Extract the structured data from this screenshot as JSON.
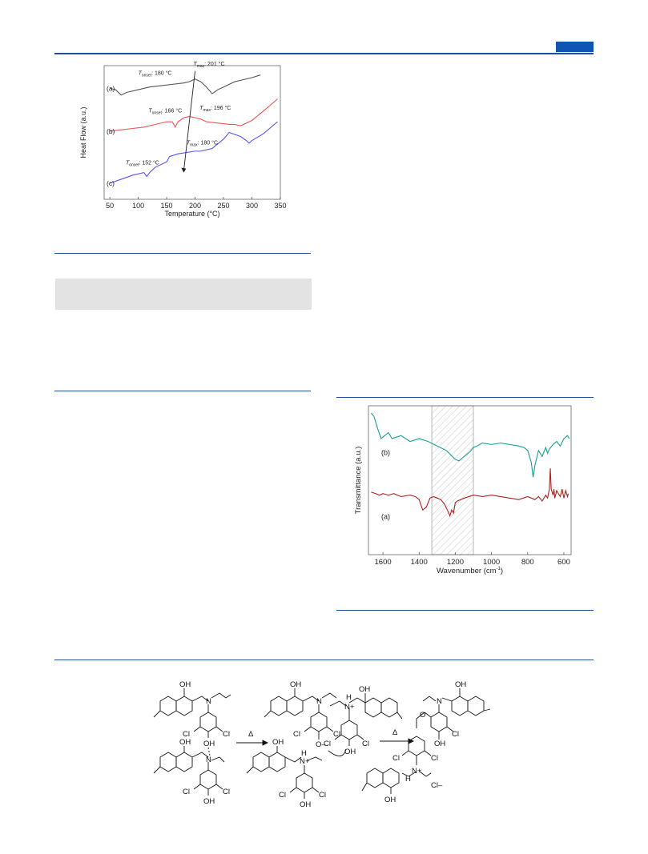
{
  "colors": {
    "accent": "#1155b2",
    "rule": "#1f4e99",
    "curve_a_dsc": "#555555",
    "curve_b_dsc": "#ee5555",
    "curve_c_dsc": "#5555ee",
    "curve_a_ir": "#aa2222",
    "curve_b_ir": "#1a9e94",
    "shade_box": "#f2f2f2"
  },
  "chart_data": [
    {
      "type": "line",
      "xlabel": "Temperature (°C)",
      "ylabel": "Heat Flow (a.u.)",
      "xlim": [
        40,
        350
      ],
      "xticks": [
        "50",
        "100",
        "150",
        "200",
        "250",
        "300",
        "350"
      ],
      "series": [
        {
          "name": "(a)",
          "x": [
            50,
            60,
            70,
            80,
            100,
            120,
            140,
            160,
            180,
            190,
            200,
            210,
            220,
            230,
            240,
            250,
            260,
            270,
            280,
            300,
            315
          ],
          "y": [
            0.83,
            0.82,
            0.78,
            0.8,
            0.82,
            0.84,
            0.85,
            0.86,
            0.87,
            0.88,
            0.9,
            0.88,
            0.84,
            0.79,
            0.82,
            0.84,
            0.86,
            0.88,
            0.89,
            0.91,
            0.93
          ]
        },
        {
          "name": "(b)",
          "x": [
            50,
            70,
            90,
            110,
            130,
            150,
            160,
            165,
            170,
            180,
            190,
            200,
            210,
            220,
            240,
            260,
            270,
            280,
            300,
            320,
            345
          ],
          "y": [
            0.51,
            0.52,
            0.53,
            0.54,
            0.56,
            0.58,
            0.58,
            0.54,
            0.58,
            0.61,
            0.62,
            0.61,
            0.6,
            0.58,
            0.57,
            0.56,
            0.56,
            0.55,
            0.59,
            0.66,
            0.75
          ]
        },
        {
          "name": "(c)",
          "x": [
            50,
            70,
            90,
            110,
            115,
            120,
            130,
            150,
            155,
            170,
            200,
            210,
            230,
            250,
            260,
            280,
            290,
            295,
            300,
            320,
            345
          ],
          "y": [
            0.12,
            0.15,
            0.18,
            0.2,
            0.17,
            0.2,
            0.24,
            0.28,
            0.32,
            0.34,
            0.36,
            0.36,
            0.38,
            0.45,
            0.5,
            0.47,
            0.44,
            0.42,
            0.44,
            0.49,
            0.58
          ]
        }
      ],
      "annotations": [
        {
          "for": "(a)",
          "kind": "onset",
          "label": "onset",
          "value": "180 °C"
        },
        {
          "for": "(a)",
          "kind": "max",
          "label": "max",
          "value": "201 °C"
        },
        {
          "for": "(b)",
          "kind": "onset",
          "label": "onset",
          "value": "166 °C"
        },
        {
          "for": "(b)",
          "kind": "max",
          "label": "max",
          "value": "196 °C"
        },
        {
          "for": "(c)",
          "kind": "onset",
          "label": "onset",
          "value": "152 °C"
        },
        {
          "for": "(c)",
          "kind": "max",
          "label": "max",
          "value": "180 °C"
        }
      ]
    },
    {
      "type": "line",
      "xlabel_main": "Wavenumber (cm",
      "xlabel_sup": "-1",
      "xlabel_tail": ")",
      "ylabel": "Transmittance (a.u.)",
      "xlim": [
        1680,
        560
      ],
      "x_reversed": true,
      "xticks": [
        "1600",
        "1400",
        "1200",
        "1000",
        "800",
        "600"
      ],
      "shaded_region": [
        1330,
        1100
      ],
      "series": [
        {
          "name": "(b)",
          "x": [
            1665,
            1650,
            1630,
            1610,
            1590,
            1570,
            1550,
            1500,
            1450,
            1400,
            1350,
            1300,
            1250,
            1200,
            1180,
            1150,
            1120,
            1100,
            1080,
            1050,
            1000,
            950,
            900,
            850,
            820,
            800,
            780,
            770,
            760,
            740,
            720,
            700,
            690,
            680,
            660,
            640,
            620,
            600,
            580,
            570
          ],
          "y": [
            0.95,
            0.93,
            0.85,
            0.78,
            0.8,
            0.82,
            0.78,
            0.8,
            0.76,
            0.78,
            0.76,
            0.73,
            0.7,
            0.64,
            0.63,
            0.66,
            0.69,
            0.72,
            0.73,
            0.75,
            0.74,
            0.75,
            0.74,
            0.73,
            0.72,
            0.7,
            0.62,
            0.52,
            0.6,
            0.7,
            0.66,
            0.72,
            0.68,
            0.71,
            0.74,
            0.76,
            0.73,
            0.78,
            0.8,
            0.78
          ]
        },
        {
          "name": "(a)",
          "x": [
            1665,
            1640,
            1620,
            1600,
            1570,
            1540,
            1500,
            1450,
            1420,
            1400,
            1380,
            1360,
            1340,
            1320,
            1300,
            1280,
            1260,
            1240,
            1230,
            1220,
            1210,
            1200,
            1190,
            1170,
            1150,
            1100,
            1050,
            1000,
            950,
            900,
            850,
            800,
            780,
            760,
            740,
            720,
            700,
            690,
            685,
            680,
            675,
            670,
            665,
            660,
            655,
            650,
            640,
            620,
            610,
            600,
            590,
            580,
            575
          ],
          "y": [
            0.42,
            0.41,
            0.4,
            0.41,
            0.4,
            0.41,
            0.39,
            0.4,
            0.39,
            0.37,
            0.3,
            0.32,
            0.38,
            0.39,
            0.38,
            0.37,
            0.34,
            0.29,
            0.26,
            0.3,
            0.28,
            0.35,
            0.36,
            0.37,
            0.38,
            0.4,
            0.39,
            0.4,
            0.39,
            0.38,
            0.37,
            0.39,
            0.38,
            0.37,
            0.39,
            0.36,
            0.4,
            0.38,
            0.41,
            0.44,
            0.58,
            0.44,
            0.42,
            0.4,
            0.44,
            0.38,
            0.43,
            0.39,
            0.44,
            0.38,
            0.43,
            0.39,
            0.41
          ]
        }
      ]
    }
  ],
  "scheme": {
    "arrow_label_1": "Δ",
    "arrow_label_2": "Δ",
    "atoms": {
      "oh": "OH",
      "n": "N",
      "cl": "Cl",
      "o": "O",
      "h": "H",
      "o_minus": "O–",
      "n_plus": "N+",
      "cl_minus": "Cl–"
    }
  }
}
